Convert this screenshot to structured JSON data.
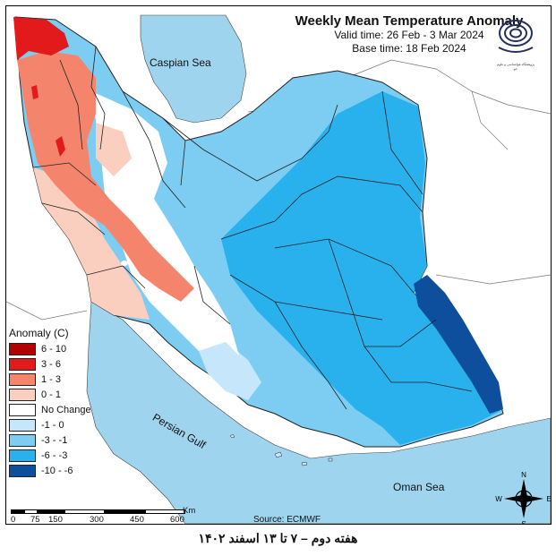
{
  "title": "Weekly Mean Temperature Anomaly",
  "valid_time": "Valid time: 26 Feb - 3 Mar 2024",
  "base_time": "Base time: 18 Feb 2024",
  "legend": {
    "title": "Anomaly (C)",
    "items": [
      {
        "label": "6 - 10",
        "color": "#b30000"
      },
      {
        "label": "3 - 6",
        "color": "#e31a1c"
      },
      {
        "label": "1 - 3",
        "color": "#f4846c"
      },
      {
        "label": "0 - 1",
        "color": "#fbcfc0"
      },
      {
        "label": "No Change",
        "color": "#ffffff"
      },
      {
        "label": "-1 - 0",
        "color": "#c6e6fb"
      },
      {
        "label": "-3 - -1",
        "color": "#7dcdf2"
      },
      {
        "label": "-6 - -3",
        "color": "#29b1ee"
      },
      {
        "label": "-10 - -6",
        "color": "#0d4f9c"
      }
    ]
  },
  "places": {
    "caspian": "Caspian Sea",
    "persian_gulf": "Persian Gulf",
    "oman_sea": "Oman Sea"
  },
  "scale": {
    "ticks": [
      "0",
      "75",
      "150",
      "300",
      "450",
      "600"
    ],
    "unit": "Km"
  },
  "source": "Source: ECMWF",
  "compass": {
    "n": "N",
    "s": "S",
    "e": "E",
    "w": "W"
  },
  "logo_caption": "پژوهشگاه هواشناسی و علوم جو",
  "caption": "هفته دوم – ۷ تا ۱۳ اسفند ۱۴۰۲",
  "colors": {
    "sea": "#9fd4ef",
    "land_outside": "#ffffff",
    "border": "#222222"
  }
}
